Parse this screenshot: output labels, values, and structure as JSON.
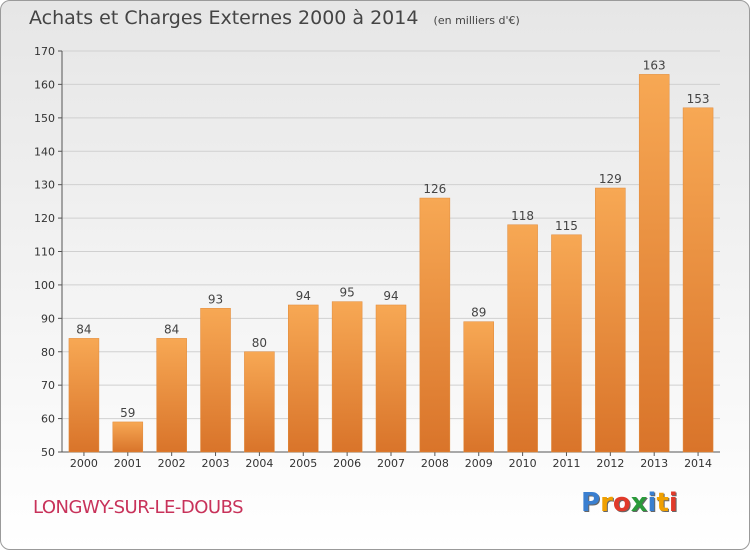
{
  "title": "Achats et Charges Externes 2000 à 2014",
  "unit_note": "(en milliers d'€)",
  "commune": "LONGWY-SUR-LE-DOUBS",
  "logo": {
    "letters": [
      "P",
      "r",
      "o",
      "x",
      "i",
      "t",
      "i"
    ],
    "colors": [
      "#3a7fd0",
      "#f0a000",
      "#e03a2a",
      "#2a9a3a",
      "#3a7fd0",
      "#f0a000",
      "#e03a2a"
    ]
  },
  "colors": {
    "bar_light": "#f7a854",
    "bar_dark": "#d9742a",
    "axis": "#555555",
    "grid": "#d0d0d0",
    "commune": "#c8325a"
  },
  "chart_data": {
    "type": "bar",
    "categories": [
      "2000",
      "2001",
      "2002",
      "2003",
      "2004",
      "2005",
      "2006",
      "2007",
      "2008",
      "2009",
      "2010",
      "2011",
      "2012",
      "2013",
      "2014"
    ],
    "values": [
      84,
      59,
      84,
      93,
      80,
      94,
      95,
      94,
      126,
      89,
      118,
      115,
      129,
      163,
      153
    ],
    "yticks": [
      50,
      60,
      70,
      80,
      90,
      100,
      110,
      120,
      130,
      140,
      150,
      160,
      170
    ],
    "ylim": [
      50,
      170
    ],
    "grid": true,
    "data_labels": true
  }
}
